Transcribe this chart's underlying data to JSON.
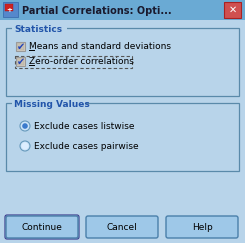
{
  "title": "Partial Correlations: Opti...",
  "title_bar_bg": "#6aaad4",
  "title_bar_text_color": "#1a1a2e",
  "close_btn_color": "#d05050",
  "dialog_bg": "#b8d4ea",
  "dialog_border": "#7aaacc",
  "group_border_color": "#5a8aaa",
  "group_label_color": "#2255aa",
  "group1_label": "Statistics",
  "group2_label": "Missing Values",
  "checkbox1_label": "Means and standard deviations",
  "checkbox2_label": "Zero-order correlations",
  "radio1_label": "Exclude cases listwise",
  "radio2_label": "Exclude cases pairwise",
  "btn_labels": [
    "Continue",
    "Cancel",
    "Help"
  ],
  "btn_bg": "#9ec8e8",
  "btn_border": "#4a80aa",
  "item_text_color": "#000000",
  "check_color": "#2244bb",
  "radio_fill": "#3a7acc",
  "icon_bg": "#cc2222"
}
